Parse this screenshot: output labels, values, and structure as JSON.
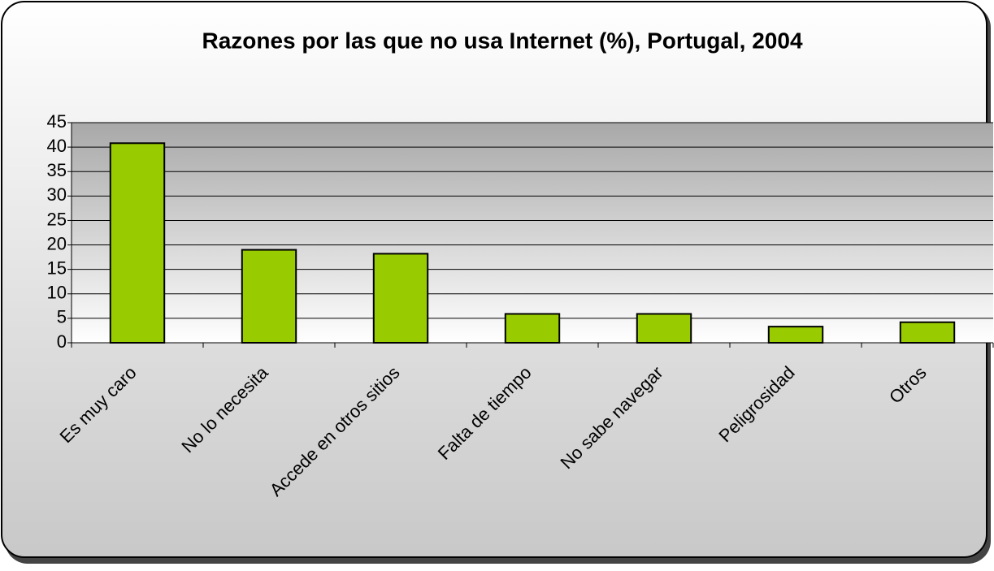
{
  "chart_data": {
    "type": "bar",
    "title": "Razones por las que no usa Internet (%), Portugal, 2004",
    "categories": [
      "Es muy caro",
      "No lo necesita",
      "Accede en otros sitios",
      "Falta de tiempo",
      "No sabe navegar",
      "Peligrosidad",
      "Otros"
    ],
    "values": [
      40.8,
      19,
      18.2,
      5.9,
      5.9,
      3.3,
      4.2
    ],
    "color": "#99cc00",
    "ylim": [
      0,
      45
    ],
    "yticks": [
      0,
      5,
      10,
      15,
      20,
      25,
      30,
      35,
      40,
      45
    ],
    "grid": true
  }
}
